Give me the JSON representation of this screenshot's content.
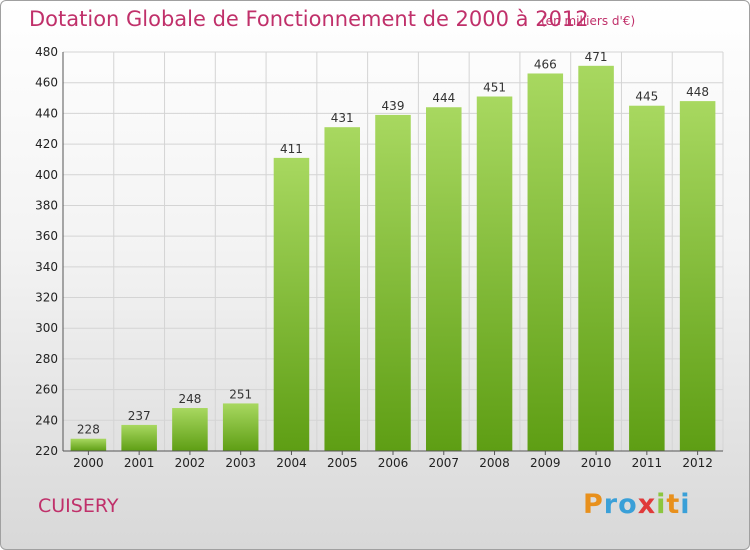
{
  "title": "Dotation Globale de Fonctionnement de 2000 à 2012",
  "unit": "(en milliers d'€)",
  "commune": "CUISERY",
  "logo": {
    "letters": [
      "P",
      "r",
      "o",
      "x",
      "i",
      "t",
      "i"
    ],
    "colors": [
      "#e8901c",
      "#3aa0d8",
      "#3aa0d8",
      "#e03a3a",
      "#8cc63f",
      "#e8901c",
      "#3aa0d8"
    ]
  },
  "colors": {
    "bar_top": "#a8d860",
    "bar_bottom": "#5e9e14",
    "grid": "#d4d4d4",
    "title": "#c0306a"
  },
  "chart_data": {
    "type": "bar",
    "categories": [
      "2000",
      "2001",
      "2002",
      "2003",
      "2004",
      "2005",
      "2006",
      "2007",
      "2008",
      "2009",
      "2010",
      "2011",
      "2012"
    ],
    "values": [
      228,
      237,
      248,
      251,
      411,
      431,
      439,
      444,
      451,
      466,
      471,
      445,
      448
    ],
    "title": "Dotation Globale de Fonctionnement de 2000 à 2012",
    "subtitle": "(en milliers d'€)",
    "ylim": [
      220,
      480
    ],
    "yticks": [
      220,
      240,
      260,
      280,
      300,
      320,
      340,
      360,
      380,
      400,
      420,
      440,
      460,
      480
    ],
    "grid": true
  }
}
